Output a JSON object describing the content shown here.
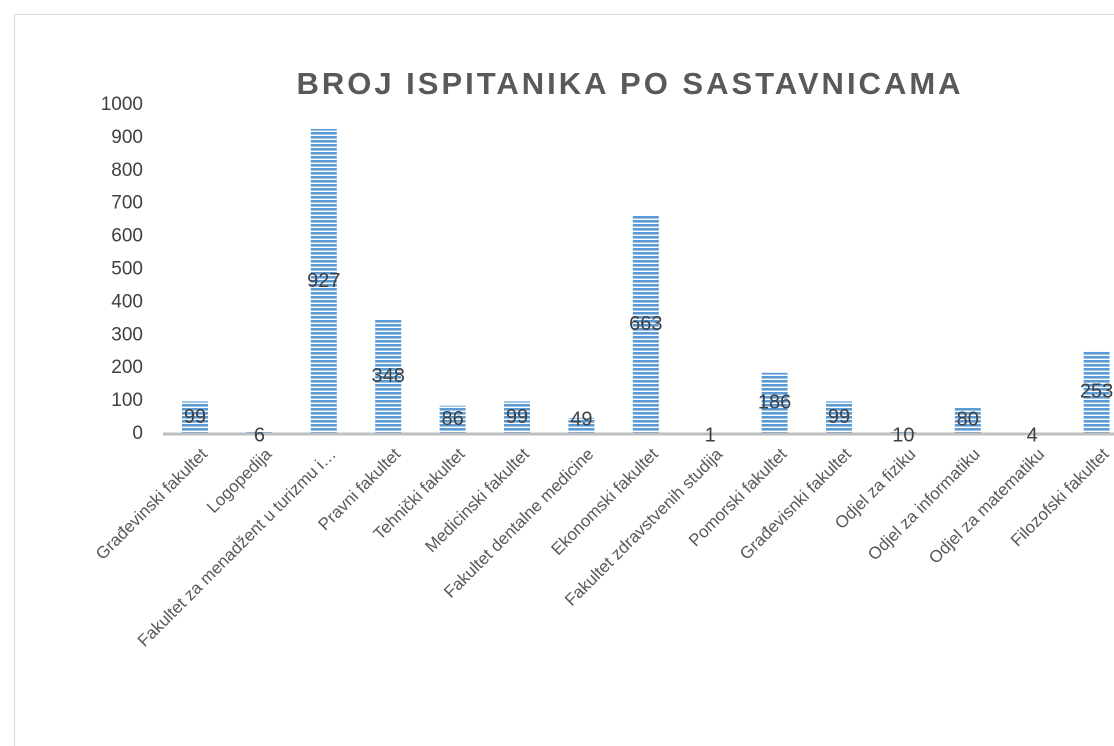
{
  "chart_data": {
    "type": "bar",
    "title": "BROJ ISPITANIKA PO SASTAVNICAMA",
    "categories": [
      "Građevinski fakultet",
      "Logopedija",
      "Fakultet za menadžent u turizmu i…",
      "Pravni fakultet",
      "Tehnički fakultet",
      "Medicinski fakultet",
      "Fakultet dentalne medicine",
      "Ekonomski fakultet",
      "Fakultet zdravstvenih studija",
      "Pomorski fakultet",
      "Građevisnki fakultet",
      "Odjel za fiziku",
      "Odjel za informatiku",
      "Odjel za matematiku",
      "Filozofski fakultet"
    ],
    "values": [
      99,
      6,
      927,
      348,
      86,
      99,
      49,
      663,
      1,
      186,
      99,
      10,
      80,
      4,
      253
    ],
    "color": "#5b9bd5",
    "ylim": [
      0,
      1000
    ],
    "yticks": [
      0,
      100,
      200,
      300,
      400,
      500,
      600,
      700,
      800,
      900,
      1000
    ],
    "grid": false
  }
}
